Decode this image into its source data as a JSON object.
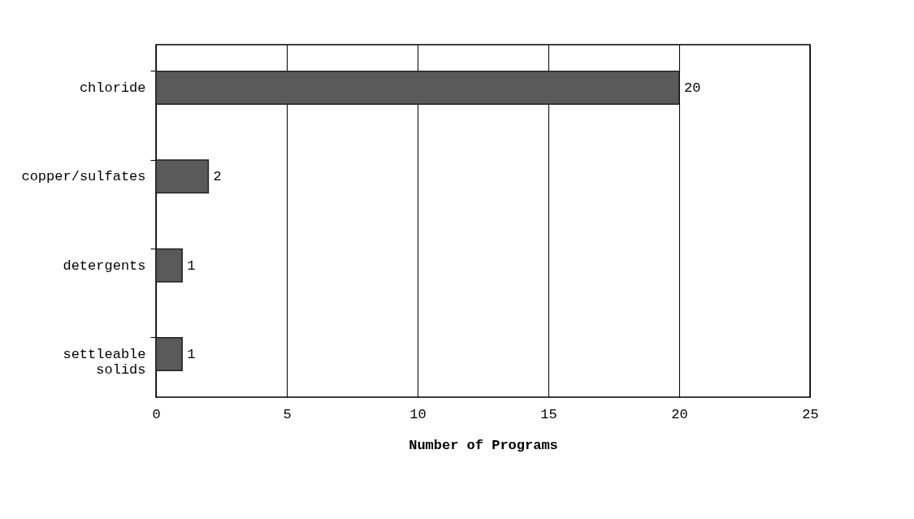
{
  "chart_data": {
    "type": "bar",
    "orientation": "horizontal",
    "categories": [
      "chloride",
      "copper/sulfates",
      "detergents",
      "settleable solids"
    ],
    "values": [
      20,
      2,
      1,
      1
    ],
    "color": "#5a5a5a",
    "xlim": [
      0,
      25
    ],
    "xticks": [
      0,
      5,
      10,
      15,
      20,
      25
    ],
    "xlabel": "Number of Programs",
    "grid": "x",
    "data_labels": true
  }
}
